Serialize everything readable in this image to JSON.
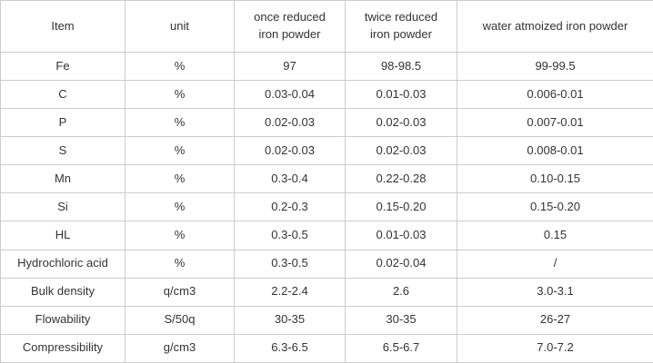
{
  "chart_data": {
    "type": "table",
    "columns": [
      {
        "key": "item",
        "lines": [
          "Item"
        ]
      },
      {
        "key": "unit",
        "lines": [
          "unit"
        ]
      },
      {
        "key": "once",
        "lines": [
          "once reduced",
          "iron powder"
        ]
      },
      {
        "key": "twice",
        "lines": [
          "twice reduced",
          "iron powder"
        ]
      },
      {
        "key": "water",
        "lines": [
          "water atmoized iron powder"
        ]
      }
    ],
    "rows": [
      {
        "cells": [
          "Fe",
          "%",
          "97",
          "98-98.5",
          "99-99.5"
        ]
      },
      {
        "cells": [
          "C",
          "%",
          "0.03-0.04",
          "0.01-0.03",
          "0.006-0.01"
        ]
      },
      {
        "cells": [
          "P",
          "%",
          "0.02-0.03",
          "0.02-0.03",
          "0.007-0.01"
        ]
      },
      {
        "cells": [
          "S",
          "%",
          "0.02-0.03",
          "0.02-0.03",
          "0.008-0.01"
        ]
      },
      {
        "cells": [
          "Mn",
          "%",
          "0.3-0.4",
          "0.22-0.28",
          "0.10-0.15"
        ]
      },
      {
        "cells": [
          "Si",
          "%",
          "0.2-0.3",
          "0.15-0.20",
          "0.15-0.20"
        ]
      },
      {
        "cells": [
          "HL",
          "%",
          "0.3-0.5",
          "0.01-0.03",
          "0.15"
        ]
      },
      {
        "cells": [
          "Hydrochloric acid",
          "%",
          "0.3-0.5",
          "0.02-0.04",
          "/"
        ]
      },
      {
        "cells": [
          "Bulk density",
          "q/cm3",
          "2.2-2.4",
          "2.6",
          "3.0-3.1"
        ]
      },
      {
        "cells": [
          "Flowability",
          "S/50q",
          "30-35",
          "30-35",
          "26-27"
        ]
      },
      {
        "cells": [
          "Compressibility",
          "g/cm3",
          "6.3-6.5",
          "6.5-6.7",
          "7.0-7.2"
        ]
      }
    ],
    "layout": {
      "grid": "all-borders",
      "header_rows": 1
    }
  },
  "colors": {
    "border": "#cccccc",
    "text": "#333333",
    "background": "#ffffff"
  }
}
